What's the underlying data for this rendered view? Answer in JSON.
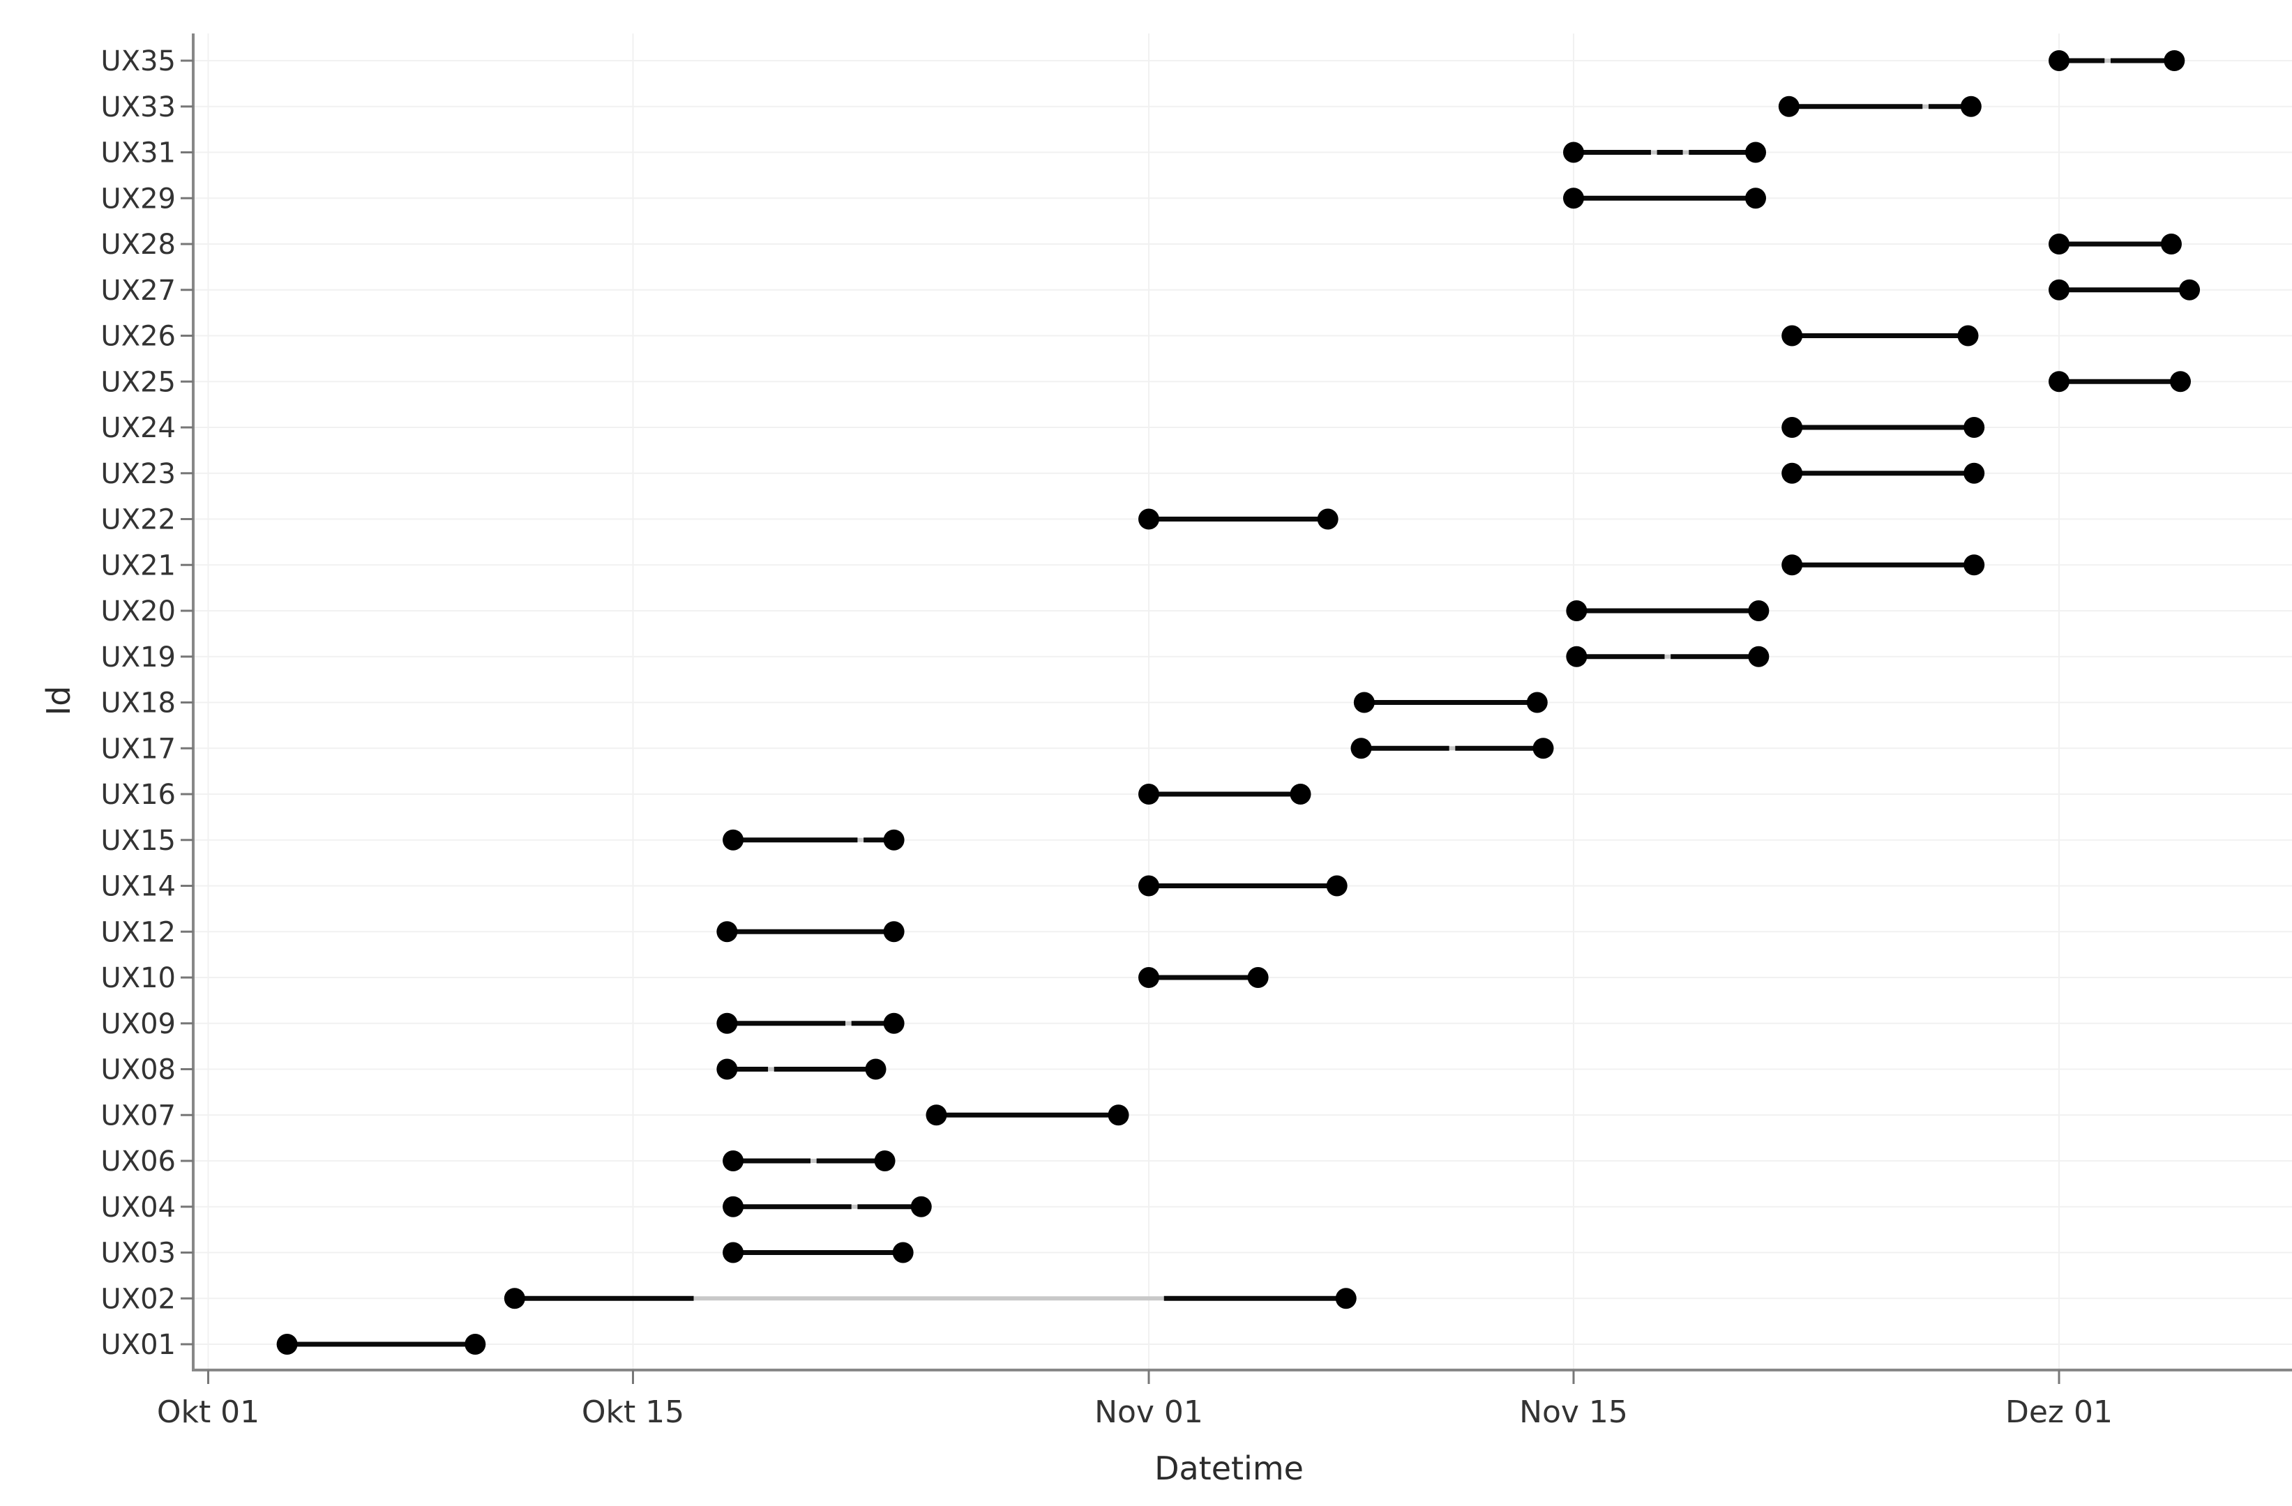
{
  "figure": {
    "background": "#ffffff",
    "description": "Dumbbell / Gantt style range chart of Ids (UX01-UX35) over datetime, German month labels"
  },
  "chart_data": {
    "type": "bar",
    "subtype": "dumbbell-gantt-range",
    "title": "",
    "legend": null,
    "grid": "on-very-faint",
    "x_axis": {
      "title": "Datetime",
      "unit": "days since Okt 01",
      "axis_range_days": [
        -0.5,
        68.7
      ],
      "ticks": [
        {
          "label": "Okt 01",
          "day": 0
        },
        {
          "label": "Okt 15",
          "day": 14
        },
        {
          "label": "Nov 01",
          "day": 31
        },
        {
          "label": "Nov 15",
          "day": 45
        },
        {
          "label": "Dez 01",
          "day": 61
        }
      ]
    },
    "y_axis": {
      "title": "Id",
      "categories_top_to_bottom": [
        "UX35",
        "UX33",
        "UX31",
        "UX29",
        "UX28",
        "UX27",
        "UX26",
        "UX25",
        "UX24",
        "UX23",
        "UX22",
        "UX21",
        "UX20",
        "UX19",
        "UX18",
        "UX17",
        "UX16",
        "UX15",
        "UX14",
        "UX12",
        "UX10",
        "UX09",
        "UX08",
        "UX07",
        "UX06",
        "UX04",
        "UX03",
        "UX02",
        "UX01"
      ]
    },
    "colors": {
      "mark": "#000000",
      "segment_line": "#0a0a0a",
      "connector": "#c8c8c8",
      "grid": "#f1f1f1",
      "axis_line": "#888888",
      "tick_mark": "#777777",
      "tick_label": "#333333",
      "axis_title": "#2b2b2b"
    },
    "rows": [
      {
        "id": "UX35",
        "start_day": 61.0,
        "end_day": 64.8,
        "start_label": "Dez 01",
        "end_label": "Dez 04",
        "segments": [
          [
            61.0,
            62.5
          ],
          [
            62.7,
            64.8
          ]
        ]
      },
      {
        "id": "UX33",
        "start_day": 52.1,
        "end_day": 58.1,
        "start_label": "Nov 22",
        "end_label": "Nov 28",
        "segments": [
          [
            52.1,
            56.5
          ],
          [
            56.7,
            58.1
          ]
        ]
      },
      {
        "id": "UX31",
        "start_day": 45.0,
        "end_day": 51.0,
        "start_label": "Nov 15",
        "end_label": "Nov 21",
        "segments": [
          [
            45.0,
            47.55
          ],
          [
            47.75,
            48.6
          ],
          [
            48.8,
            51.0
          ]
        ]
      },
      {
        "id": "UX29",
        "start_day": 45.0,
        "end_day": 51.0,
        "start_label": "Nov 15",
        "end_label": "Nov 21",
        "segments": [
          [
            45.0,
            51.0
          ]
        ]
      },
      {
        "id": "UX28",
        "start_day": 61.0,
        "end_day": 64.7,
        "start_label": "Dez 01",
        "end_label": "Dez 04",
        "segments": [
          [
            61.0,
            64.7
          ]
        ]
      },
      {
        "id": "UX27",
        "start_day": 61.0,
        "end_day": 65.3,
        "start_label": "Dez 01",
        "end_label": "Dez 05",
        "segments": [
          [
            61.0,
            65.3
          ]
        ]
      },
      {
        "id": "UX26",
        "start_day": 52.2,
        "end_day": 58.0,
        "start_label": "Nov 22",
        "end_label": "Nov 28",
        "segments": [
          [
            52.2,
            58.0
          ]
        ]
      },
      {
        "id": "UX25",
        "start_day": 61.0,
        "end_day": 65.0,
        "start_label": "Dez 01",
        "end_label": "Dez 05",
        "segments": [
          [
            61.0,
            65.0
          ]
        ]
      },
      {
        "id": "UX24",
        "start_day": 52.2,
        "end_day": 58.2,
        "start_label": "Nov 22",
        "end_label": "Nov 28",
        "segments": [
          [
            52.2,
            58.2
          ]
        ]
      },
      {
        "id": "UX23",
        "start_day": 52.2,
        "end_day": 58.2,
        "start_label": "Nov 22",
        "end_label": "Nov 28",
        "segments": [
          [
            52.2,
            58.2
          ]
        ]
      },
      {
        "id": "UX22",
        "start_day": 31.0,
        "end_day": 36.9,
        "start_label": "Nov 01",
        "end_label": "Nov 06",
        "segments": [
          [
            31.0,
            36.9
          ]
        ]
      },
      {
        "id": "UX21",
        "start_day": 52.2,
        "end_day": 58.2,
        "start_label": "Nov 22",
        "end_label": "Nov 28",
        "segments": [
          [
            52.2,
            58.2
          ]
        ]
      },
      {
        "id": "UX20",
        "start_day": 45.1,
        "end_day": 51.1,
        "start_label": "Nov 15",
        "end_label": "Nov 21",
        "segments": [
          [
            45.1,
            51.1
          ]
        ]
      },
      {
        "id": "UX19",
        "start_day": 45.1,
        "end_day": 51.1,
        "start_label": "Nov 15",
        "end_label": "Nov 21",
        "segments": [
          [
            45.1,
            48.0
          ],
          [
            48.2,
            51.1
          ]
        ]
      },
      {
        "id": "UX18",
        "start_day": 38.1,
        "end_day": 43.8,
        "start_label": "Nov 08",
        "end_label": "Nov 13",
        "segments": [
          [
            38.1,
            43.8
          ]
        ]
      },
      {
        "id": "UX17",
        "start_day": 38.0,
        "end_day": 44.0,
        "start_label": "Nov 08",
        "end_label": "Nov 14",
        "segments": [
          [
            38.0,
            40.9
          ],
          [
            41.1,
            44.0
          ]
        ]
      },
      {
        "id": "UX16",
        "start_day": 31.0,
        "end_day": 36.0,
        "start_label": "Nov 01",
        "end_label": "Nov 06",
        "segments": [
          [
            31.0,
            36.0
          ]
        ]
      },
      {
        "id": "UX15",
        "start_day": 17.3,
        "end_day": 22.6,
        "start_label": "Okt 18",
        "end_label": "Okt 23",
        "segments": [
          [
            17.3,
            21.4
          ],
          [
            21.6,
            22.6
          ]
        ]
      },
      {
        "id": "UX14",
        "start_day": 31.0,
        "end_day": 37.2,
        "start_label": "Nov 01",
        "end_label": "Nov 07",
        "segments": [
          [
            31.0,
            37.2
          ]
        ]
      },
      {
        "id": "UX12",
        "start_day": 17.1,
        "end_day": 22.6,
        "start_label": "Okt 18",
        "end_label": "Okt 23",
        "segments": [
          [
            17.1,
            22.6
          ]
        ]
      },
      {
        "id": "UX10",
        "start_day": 31.0,
        "end_day": 34.6,
        "start_label": "Nov 01",
        "end_label": "Nov 04",
        "segments": [
          [
            31.0,
            34.6
          ]
        ]
      },
      {
        "id": "UX09",
        "start_day": 17.1,
        "end_day": 22.6,
        "start_label": "Okt 18",
        "end_label": "Okt 23",
        "segments": [
          [
            17.1,
            21.0
          ],
          [
            21.2,
            22.6
          ]
        ]
      },
      {
        "id": "UX08",
        "start_day": 17.1,
        "end_day": 22.0,
        "start_label": "Okt 18",
        "end_label": "Okt 23",
        "segments": [
          [
            17.1,
            18.45
          ],
          [
            18.65,
            22.0
          ]
        ]
      },
      {
        "id": "UX07",
        "start_day": 24.0,
        "end_day": 30.0,
        "start_label": "Okt 25",
        "end_label": "Okt 31",
        "segments": [
          [
            24.0,
            30.0
          ]
        ]
      },
      {
        "id": "UX06",
        "start_day": 17.3,
        "end_day": 22.3,
        "start_label": "Okt 18",
        "end_label": "Okt 23",
        "segments": [
          [
            17.3,
            19.85
          ],
          [
            20.05,
            22.3
          ]
        ]
      },
      {
        "id": "UX04",
        "start_day": 17.3,
        "end_day": 23.5,
        "start_label": "Okt 18",
        "end_label": "Okt 24",
        "segments": [
          [
            17.3,
            21.2
          ],
          [
            21.4,
            23.5
          ]
        ]
      },
      {
        "id": "UX03",
        "start_day": 17.3,
        "end_day": 22.9,
        "start_label": "Okt 18",
        "end_label": "Okt 23",
        "segments": [
          [
            17.3,
            22.9
          ]
        ]
      },
      {
        "id": "UX02",
        "start_day": 10.1,
        "end_day": 37.5,
        "start_label": "Okt 11",
        "end_label": "Nov 07",
        "segments": [
          [
            10.1,
            16.0
          ],
          [
            31.5,
            37.5
          ]
        ],
        "connector_visible": true
      },
      {
        "id": "UX01",
        "start_day": 2.6,
        "end_day": 8.8,
        "start_label": "Okt 03",
        "end_label": "Okt 09",
        "segments": [
          [
            2.6,
            8.8
          ]
        ]
      }
    ]
  }
}
